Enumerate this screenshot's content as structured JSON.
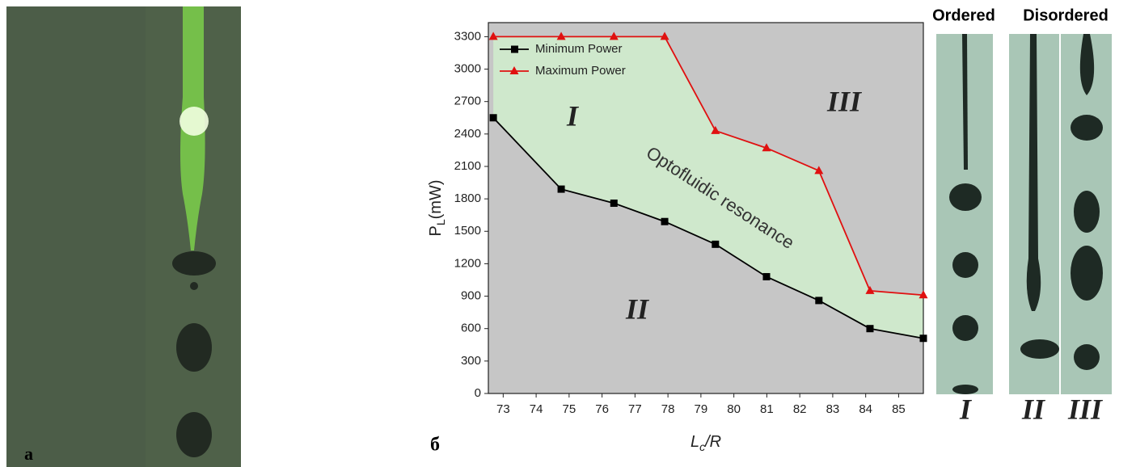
{
  "chart_data": {
    "type": "line",
    "panel_label": "б",
    "xlabel": {
      "base": "L",
      "sub": "c",
      "rest": "/R"
    },
    "ylabel": {
      "base": "P",
      "sub": "L",
      "rest": "(mW)"
    },
    "x": [
      72.7,
      74.76,
      76.36,
      77.9,
      79.44,
      80.99,
      82.58,
      84.13,
      85.75
    ],
    "series": [
      {
        "name": "Minimum Power",
        "color": "#000000",
        "marker": "square",
        "values": [
          2550,
          1890,
          1760,
          1590,
          1380,
          1080,
          860,
          600,
          510
        ]
      },
      {
        "name": "Maximum Power",
        "color": "#e01010",
        "marker": "triangle",
        "values": [
          3300,
          3300,
          3300,
          3300,
          2430,
          2270,
          2060,
          950,
          910
        ]
      }
    ],
    "xlim": [
      72.55,
      85.75
    ],
    "ylim": [
      0,
      3430
    ],
    "xticks": [
      73,
      74,
      75,
      76,
      77,
      78,
      79,
      80,
      81,
      82,
      83,
      84,
      85
    ],
    "yticks": [
      0,
      300,
      600,
      900,
      1200,
      1500,
      1800,
      2100,
      2400,
      2700,
      3000,
      3300
    ],
    "fill_between_color": "#cfe8cc",
    "background_color": "#c6c6c6",
    "legend": "upper left",
    "annotations": [
      "I",
      "II",
      "III",
      "Optofluidic resonance"
    ]
  },
  "photo_panel": {
    "label": "a"
  },
  "strips": {
    "headers": [
      "Ordered",
      "Disordered"
    ],
    "labels": [
      "I",
      "II",
      "III"
    ]
  }
}
